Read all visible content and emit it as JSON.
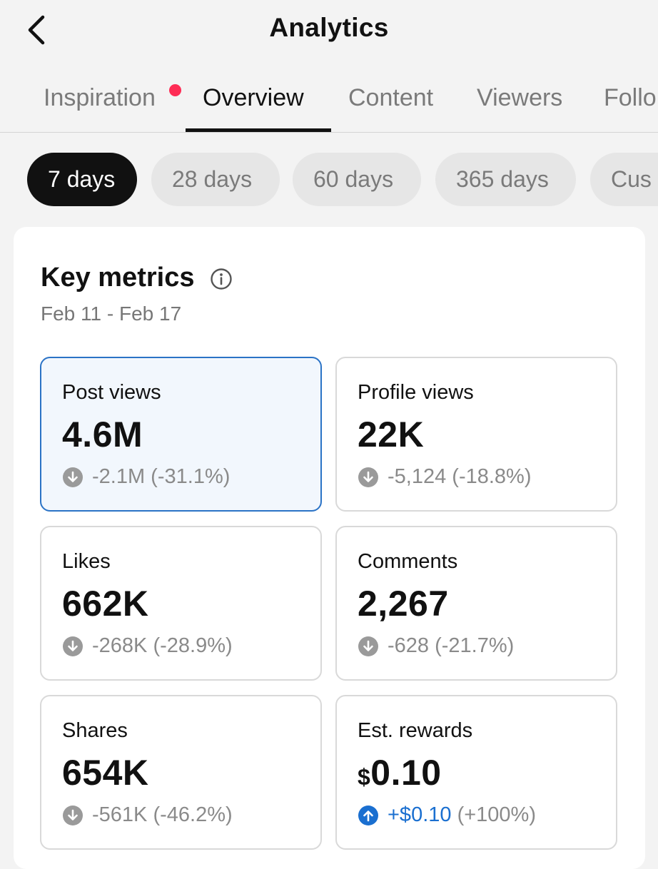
{
  "header": {
    "title": "Analytics",
    "back_icon": "chevron-left-icon"
  },
  "tabs": [
    {
      "label": "Inspiration",
      "has_dot": true
    },
    {
      "label": "Overview",
      "active": true
    },
    {
      "label": "Content"
    },
    {
      "label": "Viewers"
    },
    {
      "label": "Follo"
    }
  ],
  "ranges": [
    {
      "label": "7 days",
      "active": true
    },
    {
      "label": "28 days"
    },
    {
      "label": "60 days"
    },
    {
      "label": "365 days"
    },
    {
      "label": "Cus"
    }
  ],
  "key_metrics": {
    "title": "Key metrics",
    "info_icon": "info-icon",
    "date_range": "Feb 11 - Feb 17",
    "items": [
      {
        "label": "Post views",
        "value": "4.6M",
        "change": "-2.1M (-31.1%)",
        "direction": "down",
        "selected": true
      },
      {
        "label": "Profile views",
        "value": "22K",
        "change": "-5,124 (-18.8%)",
        "direction": "down"
      },
      {
        "label": "Likes",
        "value": "662K",
        "change": "-268K (-28.9%)",
        "direction": "down"
      },
      {
        "label": "Comments",
        "value": "2,267",
        "change": "-628 (-21.7%)",
        "direction": "down"
      },
      {
        "label": "Shares",
        "value": "654K",
        "change": "-561K (-46.2%)",
        "direction": "down"
      },
      {
        "label": "Est. rewards",
        "currency": "$",
        "value": "0.10",
        "change_value": "+$0.10",
        "change_pct": "(+100%)",
        "direction": "up"
      }
    ]
  },
  "colors": {
    "accent_red": "#fe2c55",
    "selected_border": "#2b73c6",
    "positive_blue": "#1a6fd0"
  }
}
